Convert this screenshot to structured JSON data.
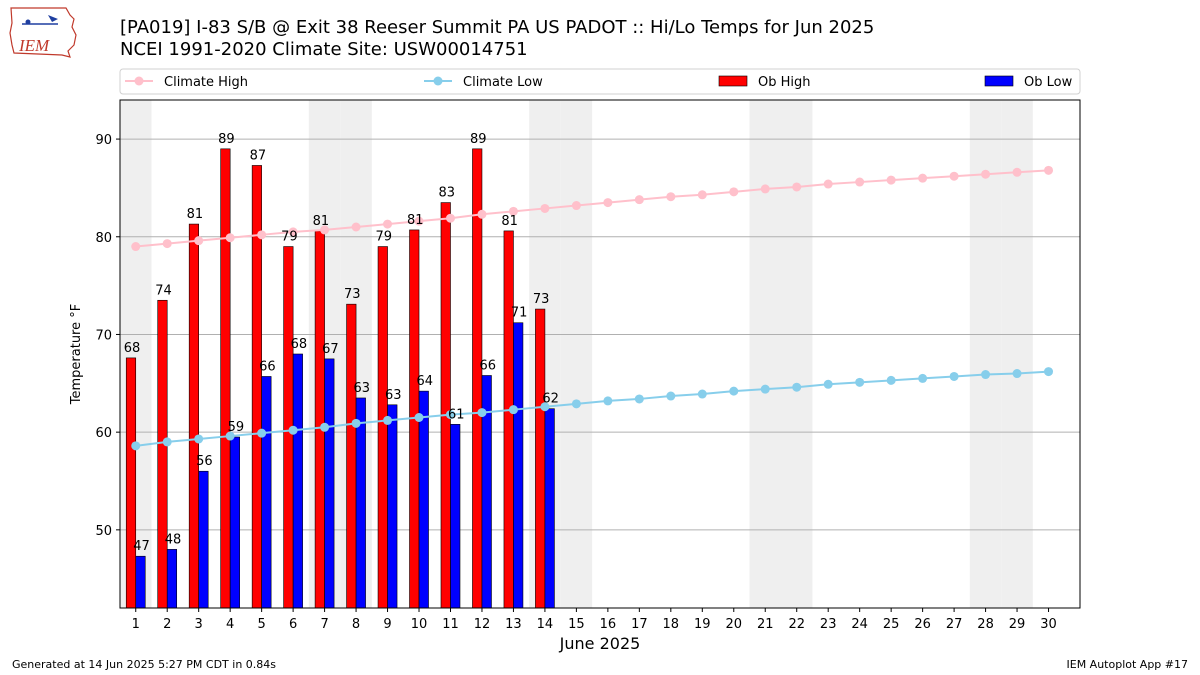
{
  "header": {
    "title_line1": "[PA019] I-83 S/B @ Exit 38 Reeser Summit PA US  PADOT :: Hi/Lo Temps for Jun 2025",
    "title_line2": "NCEI 1991-2020 Climate Site: USW00014751",
    "logo_text": "IEM"
  },
  "footer": {
    "generated": "Generated at 14 Jun 2025 5:27 PM CDT in 0.84s",
    "app": "IEM Autoplot App #17"
  },
  "chart_data": {
    "type": "bar",
    "xlabel": "June 2025",
    "ylabel": "Temperature °F",
    "ylim": [
      42,
      94
    ],
    "yticks": [
      50,
      60,
      70,
      80,
      90
    ],
    "days": [
      1,
      2,
      3,
      4,
      5,
      6,
      7,
      8,
      9,
      10,
      11,
      12,
      13,
      14,
      15,
      16,
      17,
      18,
      19,
      20,
      21,
      22,
      23,
      24,
      25,
      26,
      27,
      28,
      29,
      30
    ],
    "weekend_days": [
      1,
      7,
      8,
      14,
      15,
      21,
      22,
      28,
      29
    ],
    "grid": "horizontal",
    "legend_placement": "top",
    "series": [
      {
        "name": "Ob High",
        "kind": "bar",
        "color": "#ff0000",
        "values": [
          67.6,
          73.5,
          81.3,
          89.0,
          87.3,
          79.0,
          80.6,
          73.1,
          79.0,
          80.7,
          83.5,
          89.0,
          80.6,
          72.6
        ],
        "labels": [
          "68",
          "74",
          "81",
          "89",
          "87",
          "79",
          "81",
          "73",
          "79",
          "81",
          "83",
          "89",
          "81",
          "73"
        ]
      },
      {
        "name": "Ob Low",
        "kind": "bar",
        "color": "#0000ff",
        "values": [
          47.3,
          48.0,
          56.0,
          59.5,
          65.7,
          68.0,
          67.5,
          63.5,
          62.8,
          64.2,
          60.8,
          65.8,
          71.2,
          62.4
        ],
        "labels": [
          "47",
          "48",
          "56",
          "59",
          "66",
          "68",
          "67",
          "63",
          "63",
          "64",
          "61",
          "66",
          "71",
          "62"
        ]
      },
      {
        "name": "Climate High",
        "kind": "line",
        "color": "#ffc0cb",
        "values": [
          79.0,
          79.3,
          79.6,
          79.9,
          80.2,
          80.5,
          80.7,
          81.0,
          81.3,
          81.6,
          81.9,
          82.3,
          82.6,
          82.9,
          83.2,
          83.5,
          83.8,
          84.1,
          84.3,
          84.6,
          84.9,
          85.1,
          85.4,
          85.6,
          85.8,
          86.0,
          86.2,
          86.4,
          86.6,
          86.8
        ]
      },
      {
        "name": "Climate Low",
        "kind": "line",
        "color": "#87ceeb",
        "values": [
          58.6,
          59.0,
          59.3,
          59.6,
          59.9,
          60.2,
          60.5,
          60.9,
          61.2,
          61.5,
          61.8,
          62.0,
          62.3,
          62.6,
          62.9,
          63.2,
          63.4,
          63.7,
          63.9,
          64.2,
          64.4,
          64.6,
          64.9,
          65.1,
          65.3,
          65.5,
          65.7,
          65.9,
          66.0,
          66.2
        ]
      }
    ],
    "legend_order": [
      "Climate High",
      "Climate Low",
      "Ob High",
      "Ob Low"
    ]
  }
}
